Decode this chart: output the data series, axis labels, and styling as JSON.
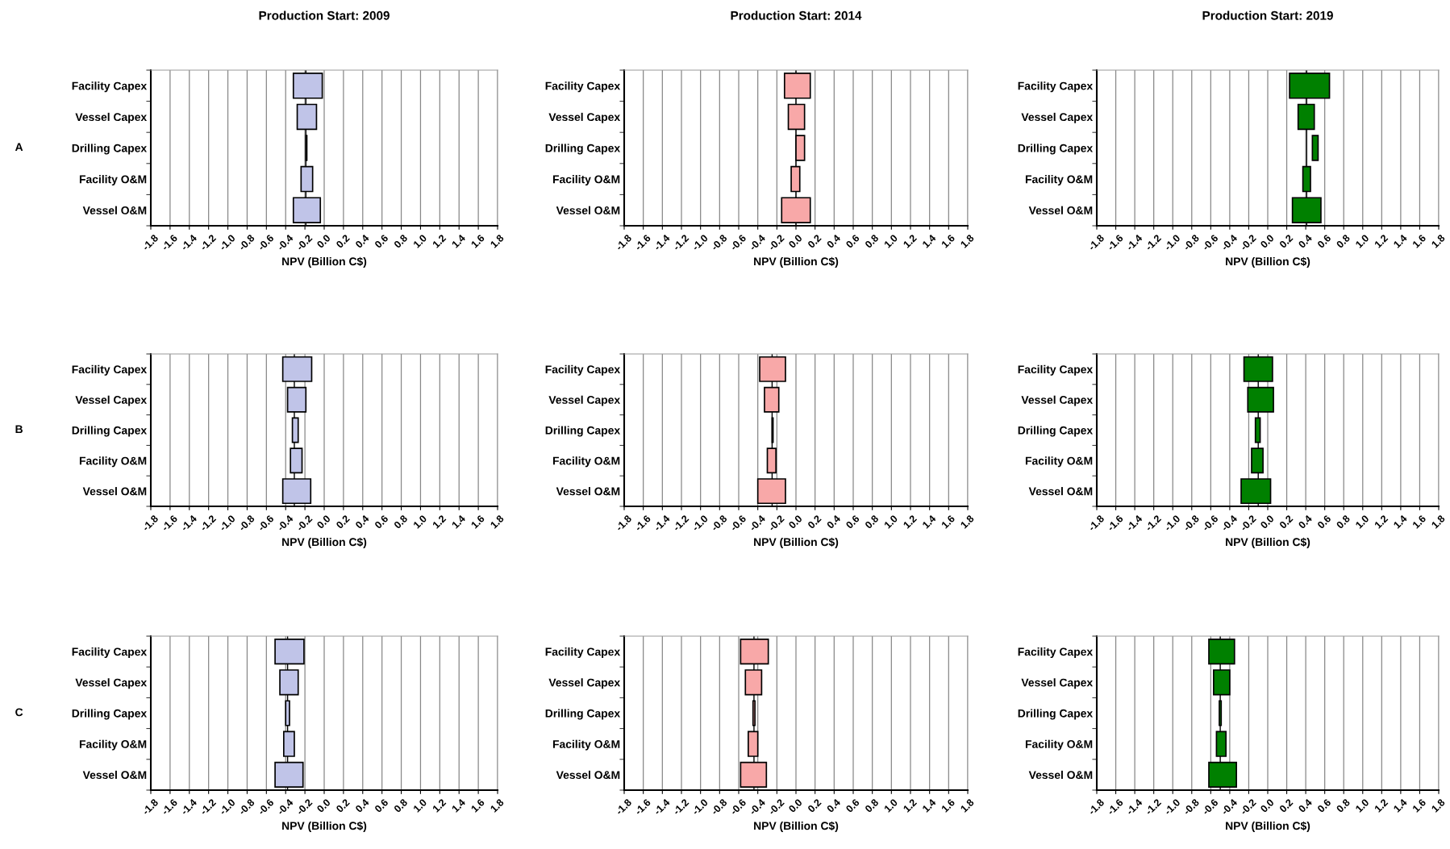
{
  "chart_data": [
    {
      "type": "bar",
      "orientation": "horizontal",
      "title": "Production Start: 2009",
      "annotations": [
        "A"
      ],
      "xlabel": "NPV (Billion C$)",
      "categories": [
        "Facility Capex",
        "Vessel Capex",
        "Drilling Capex",
        "Facility O&M",
        "Vessel O&M"
      ],
      "base": [
        -0.32,
        -0.28,
        -0.19,
        -0.24,
        -0.32
      ],
      "values": [
        0.3,
        0.2,
        0.01,
        0.12,
        0.28
      ],
      "color": "#c0c4e8",
      "ref_lines": [
        {
          "axis": "x",
          "value": -0.19
        }
      ],
      "xlim": [
        -1.8,
        1.8
      ],
      "xticks": [
        -1.8,
        -1.6,
        -1.4,
        -1.2,
        {
          "value": -1,
          "label": "-1.0"
        },
        -0.8,
        -0.6,
        -0.4,
        -0.2,
        {
          "value": 0,
          "label": "0.0"
        },
        0.2,
        0.4,
        0.6,
        0.8,
        {
          "value": 1,
          "label": "1.0"
        },
        1.2,
        1.4,
        1.6,
        1.8
      ],
      "grid": "x"
    },
    {
      "type": "bar",
      "orientation": "horizontal",
      "title": "Production Start: 2014",
      "xlabel": "NPV (Billion C$)",
      "categories": [
        "Facility Capex",
        "Vessel Capex",
        "Drilling Capex",
        "Facility O&M",
        "Vessel O&M"
      ],
      "base": [
        -0.12,
        -0.08,
        0.0,
        -0.05,
        -0.15
      ],
      "values": [
        0.27,
        0.17,
        0.09,
        0.09,
        0.3
      ],
      "color": "#f8a8a8",
      "ref_lines": [
        {
          "axis": "x",
          "value": 0.0
        }
      ],
      "xlim": [
        -1.8,
        1.8
      ],
      "xticks": [
        -1.8,
        -1.6,
        -1.4,
        -1.2,
        {
          "value": -1,
          "label": "-1.0"
        },
        -0.8,
        -0.6,
        -0.4,
        -0.2,
        {
          "value": 0,
          "label": "0.0"
        },
        0.2,
        0.4,
        0.6,
        0.8,
        {
          "value": 1,
          "label": "1.0"
        },
        1.2,
        1.4,
        1.6,
        1.8
      ],
      "grid": "x"
    },
    {
      "type": "bar",
      "orientation": "horizontal",
      "title": "Production Start: 2019",
      "xlabel": "NPV (Billion C$)",
      "categories": [
        "Facility Capex",
        "Vessel Capex",
        "Drilling Capex",
        "Facility O&M",
        "Vessel O&M"
      ],
      "base": [
        0.23,
        0.32,
        0.47,
        0.37,
        0.26
      ],
      "values": [
        0.42,
        0.17,
        0.06,
        0.08,
        0.3
      ],
      "color": "#008000",
      "ref_lines": [
        {
          "axis": "x",
          "value": 0.41
        }
      ],
      "xlim": [
        -1.8,
        1.8
      ],
      "xticks": [
        -1.8,
        -1.6,
        -1.4,
        -1.2,
        {
          "value": -1,
          "label": "-1.0"
        },
        -0.8,
        -0.6,
        -0.4,
        -0.2,
        {
          "value": 0,
          "label": "0.0"
        },
        0.2,
        0.4,
        0.6,
        0.8,
        {
          "value": 1,
          "label": "1.0"
        },
        1.2,
        1.4,
        1.6,
        1.8
      ],
      "grid": "x"
    },
    {
      "type": "bar",
      "orientation": "horizontal",
      "annotations": [
        "B"
      ],
      "xlabel": "NPV (Billion C$)",
      "categories": [
        "Facility Capex",
        "Vessel Capex",
        "Drilling Capex",
        "Facility O&M",
        "Vessel O&M"
      ],
      "base": [
        -0.43,
        -0.38,
        -0.33,
        -0.35,
        -0.43
      ],
      "values": [
        0.3,
        0.19,
        0.06,
        0.12,
        0.29
      ],
      "color": "#c0c4e8",
      "ref_lines": [
        {
          "axis": "x",
          "value": -0.31
        }
      ],
      "xlim": [
        -1.8,
        1.8
      ],
      "xticks": [
        -1.8,
        -1.6,
        -1.4,
        -1.2,
        {
          "value": -1,
          "label": "-1.0"
        },
        -0.8,
        -0.6,
        -0.4,
        -0.2,
        {
          "value": 0,
          "label": "0.0"
        },
        0.2,
        0.4,
        0.6,
        0.8,
        {
          "value": 1,
          "label": "1.0"
        },
        1.2,
        1.4,
        1.6,
        1.8
      ],
      "grid": "x"
    },
    {
      "type": "bar",
      "orientation": "horizontal",
      "xlabel": "NPV (Billion C$)",
      "categories": [
        "Facility Capex",
        "Vessel Capex",
        "Drilling Capex",
        "Facility O&M",
        "Vessel O&M"
      ],
      "base": [
        -0.38,
        -0.33,
        -0.25,
        -0.3,
        -0.4
      ],
      "values": [
        0.27,
        0.15,
        0.01,
        0.09,
        0.29
      ],
      "color": "#f8a8a8",
      "ref_lines": [
        {
          "axis": "x",
          "value": -0.25
        }
      ],
      "xlim": [
        -1.8,
        1.8
      ],
      "xticks": [
        -1.8,
        -1.6,
        -1.4,
        -1.2,
        {
          "value": -1,
          "label": "-1.0"
        },
        -0.8,
        -0.6,
        -0.4,
        -0.2,
        {
          "value": 0,
          "label": "0.0"
        },
        0.2,
        0.4,
        0.6,
        0.8,
        {
          "value": 1,
          "label": "1.0"
        },
        1.2,
        1.4,
        1.6,
        1.8
      ],
      "grid": "x"
    },
    {
      "type": "bar",
      "orientation": "horizontal",
      "xlabel": "NPV (Billion C$)",
      "categories": [
        "Facility Capex",
        "Vessel Capex",
        "Drilling Capex",
        "Facility O&M",
        "Vessel O&M"
      ],
      "base": [
        -0.25,
        -0.21,
        -0.13,
        -0.17,
        -0.28
      ],
      "values": [
        0.3,
        0.27,
        0.05,
        0.12,
        0.31
      ],
      "color": "#008000",
      "ref_lines": [
        {
          "axis": "x",
          "value": -0.1
        }
      ],
      "xlim": [
        -1.8,
        1.8
      ],
      "xticks": [
        -1.8,
        -1.6,
        -1.4,
        -1.2,
        {
          "value": -1,
          "label": "-1.0"
        },
        -0.8,
        -0.6,
        -0.4,
        -0.2,
        {
          "value": 0,
          "label": "0.0"
        },
        0.2,
        0.4,
        0.6,
        0.8,
        {
          "value": 1,
          "label": "1.0"
        },
        1.2,
        1.4,
        1.6,
        1.8
      ],
      "grid": "x"
    },
    {
      "type": "bar",
      "orientation": "horizontal",
      "annotations": [
        "C"
      ],
      "xlabel": "NPV (Billion C$)",
      "categories": [
        "Facility Capex",
        "Vessel Capex",
        "Drilling Capex",
        "Facility O&M",
        "Vessel O&M"
      ],
      "base": [
        -0.51,
        -0.46,
        -0.4,
        -0.42,
        -0.51
      ],
      "values": [
        0.3,
        0.19,
        0.04,
        0.11,
        0.29
      ],
      "color": "#c0c4e8",
      "ref_lines": [
        {
          "axis": "x",
          "value": -0.38
        }
      ],
      "xlim": [
        -1.8,
        1.8
      ],
      "xticks": [
        -1.8,
        -1.6,
        -1.4,
        -1.2,
        {
          "value": -1,
          "label": "-1.0"
        },
        -0.8,
        -0.6,
        -0.4,
        -0.2,
        {
          "value": 0,
          "label": "0.0"
        },
        0.2,
        0.4,
        0.6,
        0.8,
        {
          "value": 1,
          "label": "1.0"
        },
        1.2,
        1.4,
        1.6,
        1.8
      ],
      "grid": "x"
    },
    {
      "type": "bar",
      "orientation": "horizontal",
      "xlabel": "NPV (Billion C$)",
      "categories": [
        "Facility Capex",
        "Vessel Capex",
        "Drilling Capex",
        "Facility O&M",
        "Vessel O&M"
      ],
      "base": [
        -0.58,
        -0.53,
        -0.45,
        -0.5,
        -0.58
      ],
      "values": [
        0.29,
        0.17,
        0.02,
        0.1,
        0.27
      ],
      "color": "#f8a8a8",
      "ref_lines": [
        {
          "axis": "x",
          "value": -0.44
        }
      ],
      "xlim": [
        -1.8,
        1.8
      ],
      "xticks": [
        -1.8,
        -1.6,
        -1.4,
        -1.2,
        {
          "value": -1,
          "label": "-1.0"
        },
        -0.8,
        -0.6,
        -0.4,
        -0.2,
        {
          "value": 0,
          "label": "0.0"
        },
        0.2,
        0.4,
        0.6,
        0.8,
        {
          "value": 1,
          "label": "1.0"
        },
        1.2,
        1.4,
        1.6,
        1.8
      ],
      "grid": "x"
    },
    {
      "type": "bar",
      "orientation": "horizontal",
      "xlabel": "NPV (Billion C$)",
      "categories": [
        "Facility Capex",
        "Vessel Capex",
        "Drilling Capex",
        "Facility O&M",
        "Vessel O&M"
      ],
      "base": [
        -0.62,
        -0.57,
        -0.51,
        -0.54,
        -0.62
      ],
      "values": [
        0.27,
        0.17,
        0.02,
        0.1,
        0.29
      ],
      "color": "#008000",
      "ref_lines": [
        {
          "axis": "x",
          "value": -0.5
        }
      ],
      "xlim": [
        -1.8,
        1.8
      ],
      "xticks": [
        -1.8,
        -1.6,
        -1.4,
        -1.2,
        {
          "value": -1,
          "label": "-1.0"
        },
        -0.8,
        -0.6,
        -0.4,
        -0.2,
        {
          "value": 0,
          "label": "0.0"
        },
        0.2,
        0.4,
        0.6,
        0.8,
        {
          "value": 1,
          "label": "1.0"
        },
        1.2,
        1.4,
        1.6,
        1.8
      ],
      "grid": "x"
    }
  ]
}
